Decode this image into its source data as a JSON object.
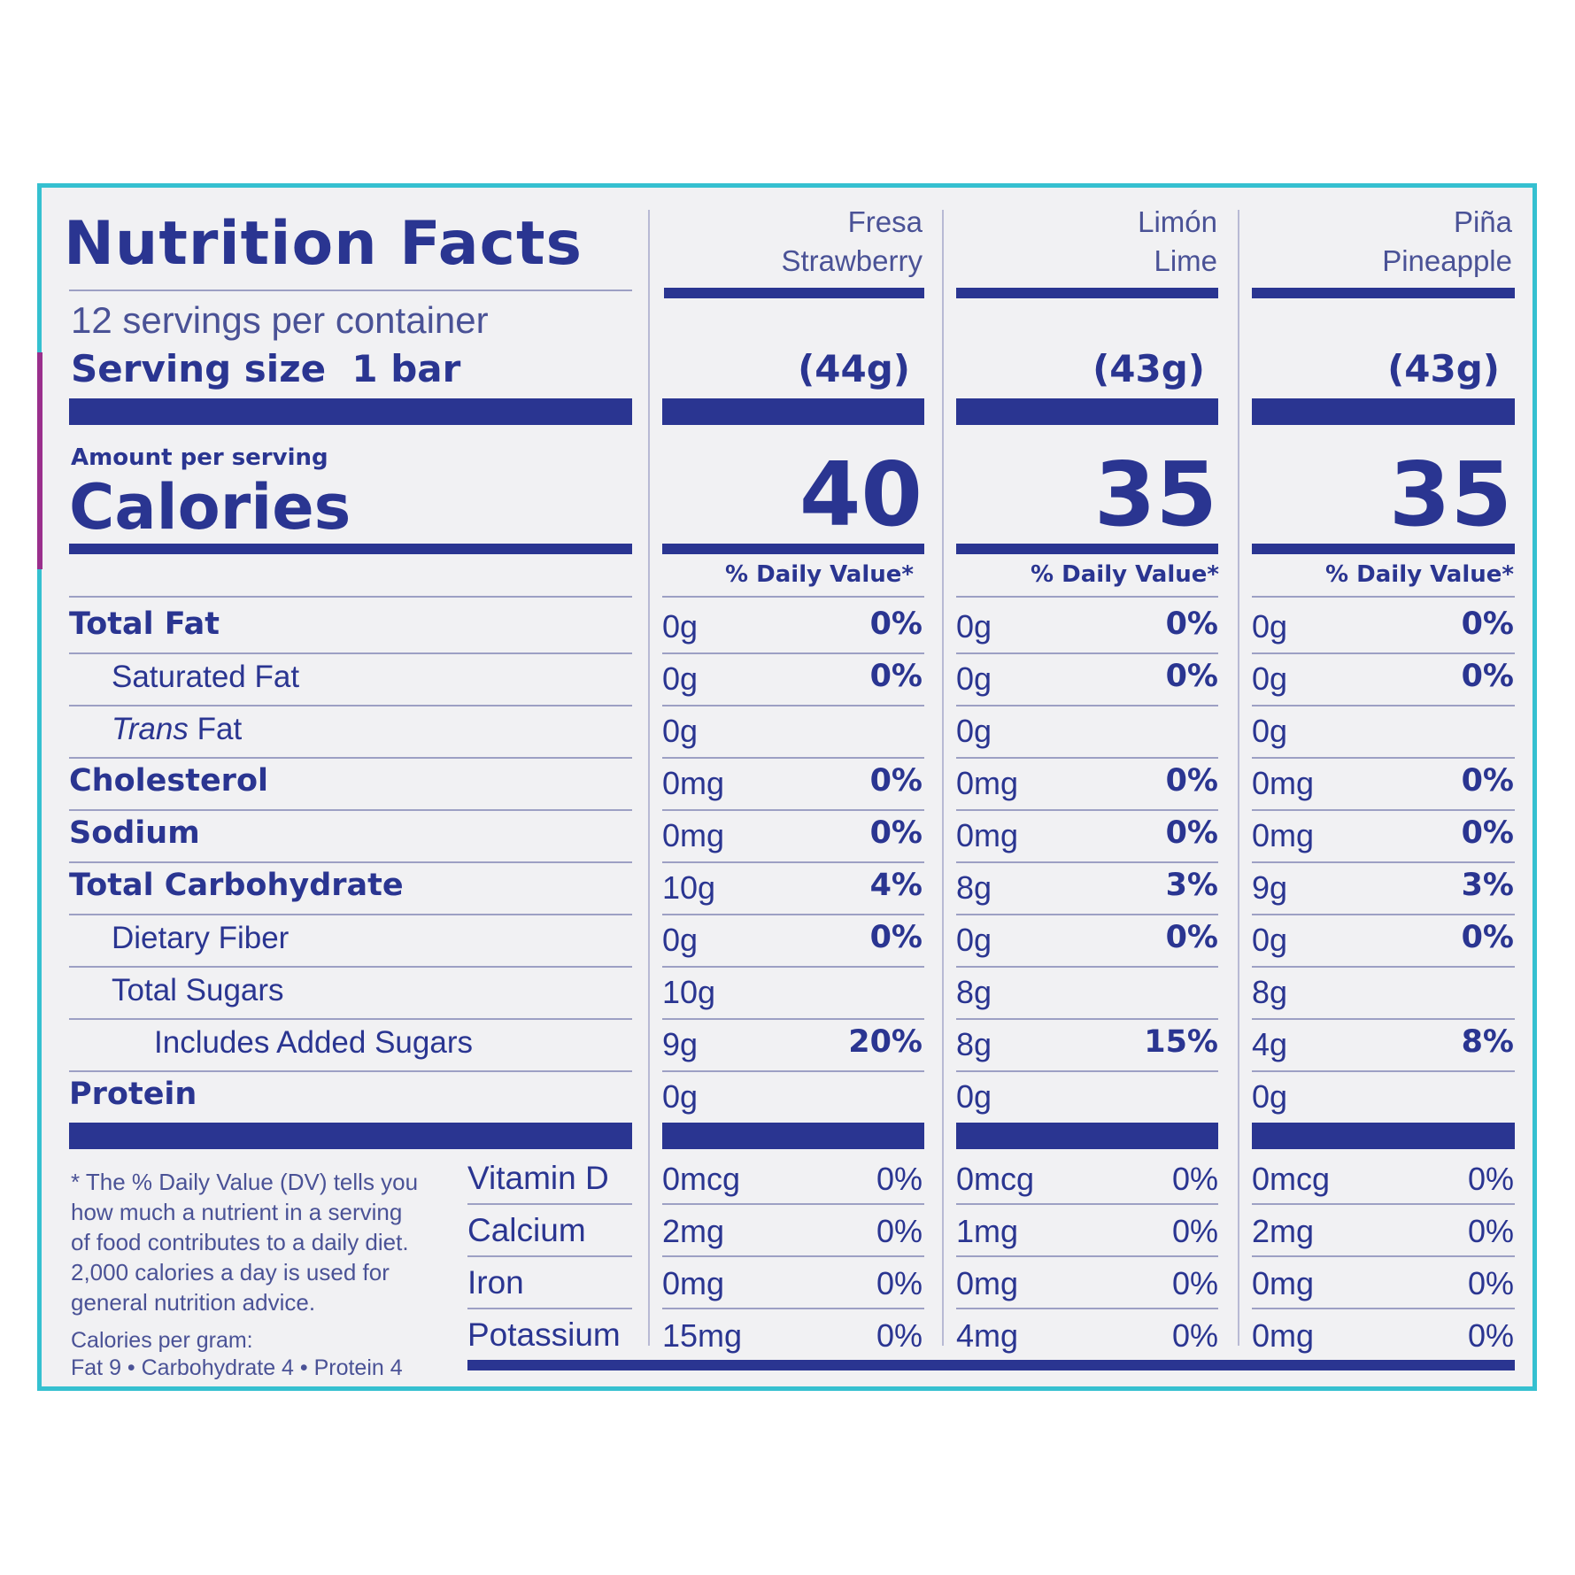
{
  "title": "Nutrition Facts",
  "servings_per_container": "12 servings per container",
  "serving_size_label": "Serving size",
  "serving_size_value": "1 bar",
  "amount_per_serving": "Amount per serving",
  "calories_label": "Calories",
  "dv_header": "% Daily Value*",
  "flavors": [
    {
      "spanish": "Fresa",
      "english": "Strawberry",
      "serving_weight": "(44g)",
      "calories": "40"
    },
    {
      "spanish": "Limón",
      "english": "Lime",
      "serving_weight": "(43g)",
      "calories": "35"
    },
    {
      "spanish": "Piña",
      "english": "Pineapple",
      "serving_weight": "(43g)",
      "calories": "35"
    }
  ],
  "nutrients": [
    {
      "label": "Total Fat",
      "values": [
        [
          "0g",
          "0%"
        ],
        [
          "0g",
          "0%"
        ],
        [
          "0g",
          "0%"
        ]
      ]
    },
    {
      "label": "Saturated Fat",
      "values": [
        [
          "0g",
          "0%"
        ],
        [
          "0g",
          "0%"
        ],
        [
          "0g",
          "0%"
        ]
      ]
    },
    {
      "label_italic": "Trans",
      "label": " Fat",
      "values": [
        [
          "0g",
          ""
        ],
        [
          "0g",
          ""
        ],
        [
          "0g",
          ""
        ]
      ]
    },
    {
      "label": "Cholesterol",
      "values": [
        [
          "0mg",
          "0%"
        ],
        [
          "0mg",
          "0%"
        ],
        [
          "0mg",
          "0%"
        ]
      ]
    },
    {
      "label": "Sodium",
      "values": [
        [
          "0mg",
          "0%"
        ],
        [
          "0mg",
          "0%"
        ],
        [
          "0mg",
          "0%"
        ]
      ]
    },
    {
      "label": "Total Carbohydrate",
      "values": [
        [
          "10g",
          "4%"
        ],
        [
          "8g",
          "3%"
        ],
        [
          "9g",
          "3%"
        ]
      ]
    },
    {
      "label": "Dietary Fiber",
      "values": [
        [
          "0g",
          "0%"
        ],
        [
          "0g",
          "0%"
        ],
        [
          "0g",
          "0%"
        ]
      ]
    },
    {
      "label": "Total Sugars",
      "values": [
        [
          "10g",
          ""
        ],
        [
          "8g",
          ""
        ],
        [
          "8g",
          ""
        ]
      ]
    },
    {
      "label": "Includes Added Sugars",
      "values": [
        [
          "9g",
          "20%"
        ],
        [
          "8g",
          "15%"
        ],
        [
          "4g",
          "8%"
        ]
      ]
    },
    {
      "label": "Protein",
      "values": [
        [
          "0g",
          ""
        ],
        [
          "0g",
          ""
        ],
        [
          "0g",
          ""
        ]
      ]
    }
  ],
  "vitamins": [
    {
      "label": "Vitamin D",
      "values": [
        [
          "0mcg",
          "0%"
        ],
        [
          "0mcg",
          "0%"
        ],
        [
          "0mcg",
          "0%"
        ]
      ]
    },
    {
      "label": "Calcium",
      "values": [
        [
          "2mg",
          "0%"
        ],
        [
          "1mg",
          "0%"
        ],
        [
          "2mg",
          "0%"
        ]
      ]
    },
    {
      "label": "Iron",
      "values": [
        [
          "0mg",
          "0%"
        ],
        [
          "0mg",
          "0%"
        ],
        [
          "0mg",
          "0%"
        ]
      ]
    },
    {
      "label": "Potassium",
      "values": [
        [
          "15mg",
          "0%"
        ],
        [
          "4mg",
          "0%"
        ],
        [
          "0mg",
          "0%"
        ]
      ]
    }
  ],
  "footnote": [
    "* The % Daily Value (DV) tells you",
    "how much a nutrient in a serving",
    "of food contributes to a daily diet.",
    "2,000 calories a day is used for",
    "general nutrition advice."
  ],
  "calories_per_gram_label": "Calories per gram:",
  "calories_per_gram": "Fat 9 • Carbohydrate 4 • Protein 4",
  "colors": {
    "ink": "#2a3591",
    "border": "#35c0d0",
    "accent": "#9a2f8c",
    "panel": "#f1f1f3"
  }
}
